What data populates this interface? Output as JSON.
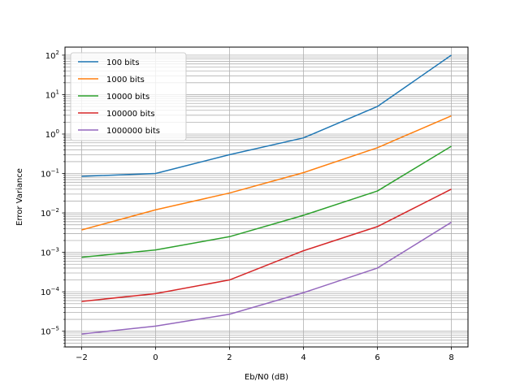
{
  "chart_data": {
    "type": "line",
    "xlabel": "Eb/N0 (dB)",
    "ylabel": "Error Variance",
    "yscale": "log",
    "xlim": [
      -2.45,
      8.45
    ],
    "ylim": [
      4e-06,
      160
    ],
    "xticks": [
      -2,
      0,
      2,
      4,
      6,
      8
    ],
    "xtick_labels": [
      "−2",
      "0",
      "2",
      "4",
      "6",
      "8"
    ],
    "ytick_exponents": [
      -5,
      -4,
      -3,
      -2,
      -1,
      0,
      1,
      2
    ],
    "grid": "major and minor",
    "legend_position": "top-left",
    "x": [
      -2,
      0,
      2,
      4,
      6,
      8
    ],
    "series": [
      {
        "name": "100 bits",
        "color": "#1f77b4",
        "values": [
          0.085,
          0.1,
          0.3,
          0.8,
          5,
          100
        ]
      },
      {
        "name": "1000 bits",
        "color": "#ff7f0e",
        "values": [
          0.0037,
          0.012,
          0.032,
          0.105,
          0.45,
          2.9
        ]
      },
      {
        "name": "10000 bits",
        "color": "#2ca02c",
        "values": [
          0.00075,
          0.00115,
          0.0025,
          0.0087,
          0.036,
          0.49
        ]
      },
      {
        "name": "100000 bits",
        "color": "#d62728",
        "values": [
          5.7e-05,
          9e-05,
          0.0002,
          0.0011,
          0.0045,
          0.04
        ]
      },
      {
        "name": "1000000 bits",
        "color": "#9467bd",
        "values": [
          8.5e-06,
          1.35e-05,
          2.7e-05,
          9.5e-05,
          0.0004,
          0.0058
        ]
      }
    ]
  }
}
